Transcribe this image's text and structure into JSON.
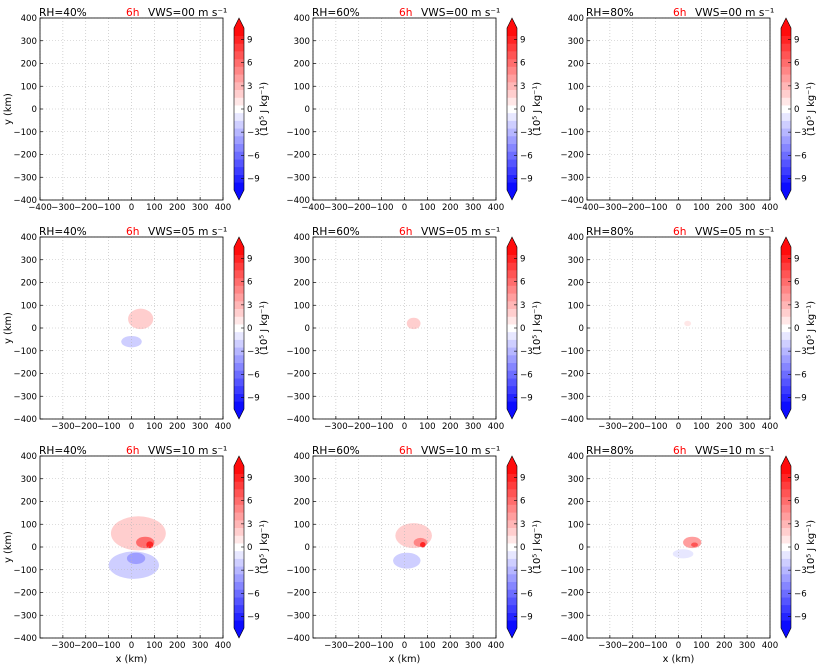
{
  "chart_data": {
    "type": "heatmap",
    "layout": "3x3 panel grid",
    "x_unit": "km",
    "y_unit": "km",
    "xlabel": "x (km)",
    "ylabel": "y (km)",
    "xlim": [
      -400,
      400
    ],
    "ylim": [
      -400,
      400
    ],
    "x_ticks_row1": [
      "−400",
      "−300",
      "−200",
      "−100",
      "0",
      "100",
      "200",
      "300",
      "400"
    ],
    "x_ticks_rows23": [
      "−300",
      "−200",
      "−100",
      "0",
      "100",
      "200",
      "300",
      "400"
    ],
    "y_ticks": [
      "400",
      "300",
      "200",
      "100",
      "0",
      "−100",
      "−200",
      "−300",
      "−400"
    ],
    "grid": true,
    "time_label": "6h",
    "colorbar": {
      "label": "(10⁵ J kg⁻¹)",
      "ticks": [
        "9",
        "6",
        "3",
        "0",
        "−3",
        "−6",
        "−9"
      ],
      "vmin": -10.5,
      "vmax": 10.5,
      "levels": 21,
      "colors": {
        "negative": "#0000ff",
        "zero": "#ffffff",
        "positive": "#ff0000"
      }
    },
    "panels": [
      {
        "row": 0,
        "col": 0,
        "rh": "RH=40%",
        "vws": "VWS=00 m s⁻¹",
        "background": 0.15,
        "features": [
          {
            "x": 70,
            "y": 40,
            "rx": 20,
            "ry": 15,
            "value": 0.3
          }
        ]
      },
      {
        "row": 0,
        "col": 1,
        "rh": "RH=60%",
        "vws": "VWS=00 m s⁻¹",
        "background": 0.1,
        "features": []
      },
      {
        "row": 0,
        "col": 2,
        "rh": "RH=80%",
        "vws": "VWS=00 m s⁻¹",
        "background": 0.1,
        "features": []
      },
      {
        "row": 1,
        "col": 0,
        "rh": "RH=40%",
        "vws": "VWS=05 m s⁻¹",
        "background": 0.3,
        "features": [
          {
            "x": 40,
            "y": 40,
            "rx": 55,
            "ry": 45,
            "value": 2.0
          },
          {
            "x": 0,
            "y": -60,
            "rx": 45,
            "ry": 25,
            "value": -1.6
          }
        ]
      },
      {
        "row": 1,
        "col": 1,
        "rh": "RH=60%",
        "vws": "VWS=05 m s⁻¹",
        "background": 0.3,
        "features": [
          {
            "x": 40,
            "y": 20,
            "rx": 30,
            "ry": 25,
            "value": 1.8
          }
        ]
      },
      {
        "row": 1,
        "col": 2,
        "rh": "RH=80%",
        "vws": "VWS=05 m s⁻¹",
        "background": 0.3,
        "features": [
          {
            "x": 40,
            "y": 20,
            "rx": 15,
            "ry": 12,
            "value": 0.9
          }
        ]
      },
      {
        "row": 2,
        "col": 0,
        "rh": "RH=40%",
        "vws": "VWS=10 m s⁻¹",
        "background": 0.3,
        "features": [
          {
            "x": 30,
            "y": 60,
            "rx": 120,
            "ry": 75,
            "value": 2.2
          },
          {
            "x": 60,
            "y": 20,
            "rx": 40,
            "ry": 25,
            "value": 5.5
          },
          {
            "x": 80,
            "y": 10,
            "rx": 15,
            "ry": 15,
            "value": 8.5
          },
          {
            "x": 10,
            "y": -80,
            "rx": 110,
            "ry": 60,
            "value": -2.5
          },
          {
            "x": 20,
            "y": -50,
            "rx": 40,
            "ry": 25,
            "value": -4.0
          }
        ]
      },
      {
        "row": 2,
        "col": 1,
        "rh": "RH=60%",
        "vws": "VWS=10 m s⁻¹",
        "background": 0.3,
        "features": [
          {
            "x": 40,
            "y": 50,
            "rx": 80,
            "ry": 55,
            "value": 2.2
          },
          {
            "x": 70,
            "y": 20,
            "rx": 30,
            "ry": 20,
            "value": 5.0
          },
          {
            "x": 80,
            "y": 10,
            "rx": 12,
            "ry": 12,
            "value": 8.5
          },
          {
            "x": 10,
            "y": -60,
            "rx": 60,
            "ry": 35,
            "value": -2.2
          }
        ]
      },
      {
        "row": 2,
        "col": 2,
        "rh": "RH=80%",
        "vws": "VWS=10 m s⁻¹",
        "background": 0.3,
        "features": [
          {
            "x": 60,
            "y": 20,
            "rx": 40,
            "ry": 25,
            "value": 4.0
          },
          {
            "x": 70,
            "y": 10,
            "rx": 15,
            "ry": 10,
            "value": 7.0
          },
          {
            "x": 20,
            "y": -30,
            "rx": 45,
            "ry": 20,
            "value": -1.5
          }
        ]
      }
    ]
  }
}
